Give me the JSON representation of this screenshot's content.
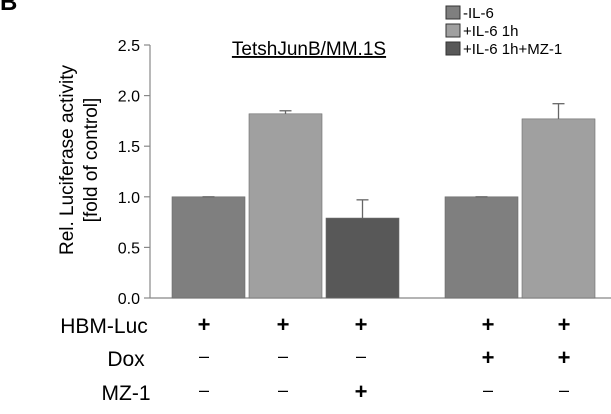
{
  "panel_label": "B",
  "colors": {
    "minus_il6": "#7f7f7f",
    "il6_1h": "#a0a0a0",
    "il6_1h_mz1": "#585858",
    "axis": "#888888",
    "error_bar": "#666666"
  },
  "chart_data": {
    "type": "bar",
    "title": "TetshJunB/MM.1S",
    "ylabel": [
      "Rel. Luciferase activity",
      "[fold of control]"
    ],
    "ylim": [
      0,
      2.5
    ],
    "yticks": [
      "0.0",
      "0.5",
      "1.0",
      "1.5",
      "2.0",
      "2.5"
    ],
    "grid": false,
    "legend_position": "top-right",
    "series": [
      {
        "name": "-IL-6",
        "color": "#7f7f7f"
      },
      {
        "name": "+IL-6 1h",
        "color": "#a0a0a0"
      },
      {
        "name": "+IL-6 1h+MZ-1",
        "color": "#585858"
      }
    ],
    "groups": [
      {
        "bars": [
          {
            "series": 0,
            "value": 1.0,
            "error": 0.0
          },
          {
            "series": 1,
            "value": 1.82,
            "error": 0.03
          },
          {
            "series": 2,
            "value": 0.79,
            "error": 0.18
          }
        ]
      },
      {
        "bars": [
          {
            "series": 0,
            "value": 1.0,
            "error": 0.0
          },
          {
            "series": 1,
            "value": 1.77,
            "error": 0.15
          }
        ]
      }
    ],
    "conditions": [
      {
        "label": "HBM-Luc",
        "values": [
          "+",
          "+",
          "+",
          "+",
          "+"
        ]
      },
      {
        "label": "Dox",
        "values": [
          "–",
          "–",
          "–",
          "+",
          "+"
        ]
      },
      {
        "label": "MZ-1",
        "values": [
          "–",
          "–",
          "+",
          "–",
          "–"
        ]
      }
    ]
  }
}
